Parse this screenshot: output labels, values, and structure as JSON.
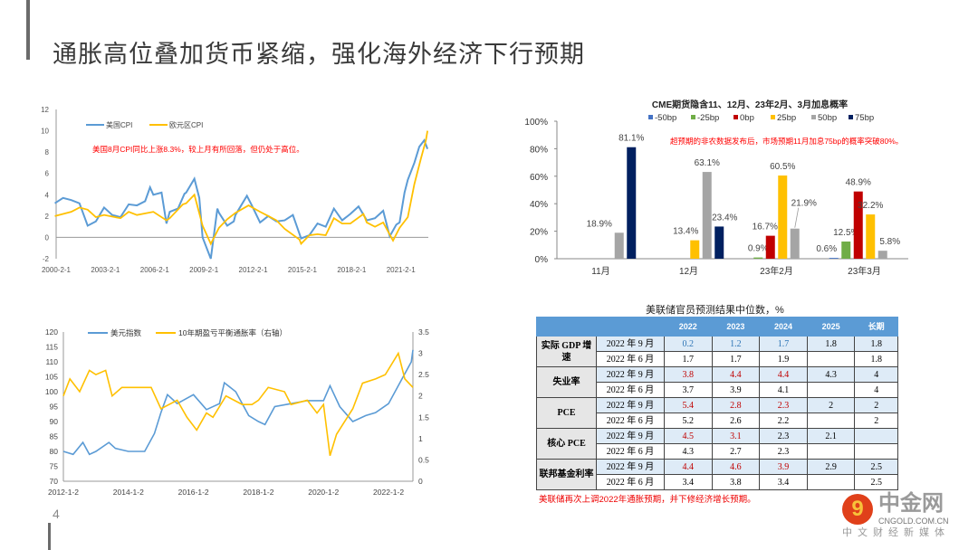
{
  "page": {
    "title": "通胀高位叠加货币紧缩，强化海外经济下行预期",
    "page_number": "4"
  },
  "chart_data": [
    {
      "type": "line",
      "title": "",
      "series": [
        {
          "name": "美国CPI",
          "color": "#5b9bd5",
          "x": [
            2000,
            2000.5,
            2001,
            2001.5,
            2002,
            2002.5,
            2003,
            2003.5,
            2004,
            2004.5,
            2005,
            2005.5,
            2005.8,
            2006,
            2006.5,
            2006.8,
            2007,
            2007.5,
            2007.9,
            2008,
            2008.5,
            2008.8,
            2009,
            2009.5,
            2009.9,
            2010,
            2010.5,
            2010.9,
            2011,
            2011.7,
            2012,
            2012.5,
            2013,
            2013.5,
            2014,
            2014.5,
            2015,
            2015.5,
            2016,
            2016.5,
            2017,
            2017.5,
            2018,
            2018.5,
            2019,
            2019.5,
            2020,
            2020.4,
            2020.8,
            2021,
            2021.3,
            2021.5,
            2021.9,
            2022.2,
            2022.5,
            2022.7
          ],
          "values": [
            3.2,
            3.7,
            3.5,
            3.2,
            1.1,
            1.5,
            2.8,
            2.1,
            1.9,
            3.1,
            3.0,
            3.4,
            4.7,
            4.0,
            4.2,
            1.3,
            2.4,
            2.7,
            4.1,
            4.2,
            5.5,
            3.7,
            0.0,
            -2.0,
            2.7,
            2.3,
            1.1,
            1.5,
            2.1,
            3.9,
            3.0,
            1.4,
            2.0,
            1.5,
            1.6,
            2.1,
            -0.1,
            0.2,
            1.3,
            1.0,
            2.7,
            1.6,
            2.2,
            2.9,
            1.6,
            1.8,
            2.5,
            0.1,
            1.2,
            1.4,
            4.2,
            5.4,
            7.0,
            8.5,
            9.1,
            8.3
          ]
        },
        {
          "name": "欧元区CPI",
          "color": "#ffc000",
          "x": [
            2000,
            2001,
            2001.5,
            2002,
            2002.5,
            2003,
            2004,
            2004.5,
            2005,
            2006,
            2006.8,
            2007,
            2007.8,
            2008,
            2008.5,
            2009,
            2009.5,
            2010,
            2010.5,
            2011,
            2011.8,
            2012.5,
            2013,
            2013.5,
            2014,
            2014.9,
            2015,
            2015.5,
            2016,
            2016.5,
            2017,
            2017.5,
            2018,
            2018.8,
            2019,
            2019.5,
            2020,
            2020.6,
            2021,
            2021.5,
            2021.9,
            2022.3,
            2022.6,
            2022.7
          ],
          "values": [
            2.0,
            2.4,
            2.8,
            2.6,
            1.9,
            2.1,
            1.8,
            2.4,
            2.1,
            2.4,
            1.6,
            1.8,
            3.1,
            3.2,
            4.0,
            1.1,
            -0.6,
            0.9,
            1.7,
            2.3,
            3.0,
            2.4,
            2.0,
            1.6,
            0.8,
            -0.2,
            -0.6,
            0.2,
            0.3,
            0.2,
            1.8,
            1.3,
            1.3,
            2.2,
            1.4,
            1.0,
            1.4,
            -0.3,
            0.9,
            1.9,
            5.0,
            7.4,
            9.1,
            10.0
          ]
        }
      ],
      "ylim": [
        -2,
        12
      ],
      "yticks": [
        "-2",
        "0",
        "2",
        "4",
        "6",
        "8",
        "10",
        "12"
      ],
      "xticks": [
        "2000-2-1",
        "2003-2-1",
        "2006-2-1",
        "2009-2-1",
        "2012-2-1",
        "2015-2-1",
        "2018-2-1",
        "2021-2-1"
      ],
      "annotation": "美国8月CPI同比上涨8.3%，较上月有所回落，但仍处于高位。",
      "legend": "top-left"
    },
    {
      "type": "bar",
      "title": "CME期货隐含11、12月、23年2月、3月加息概率",
      "categories": [
        "11月",
        "12月",
        "23年2月",
        "23年3月"
      ],
      "series": [
        {
          "name": "-50bp",
          "color": "#4472c4",
          "values": [
            0,
            0,
            0,
            0.6
          ]
        },
        {
          "name": "-25bp",
          "color": "#70ad47",
          "values": [
            0,
            0,
            0.9,
            12.5
          ]
        },
        {
          "name": "0bp",
          "color": "#c00000",
          "values": [
            0,
            0,
            16.7,
            48.9
          ]
        },
        {
          "name": "25bp",
          "color": "#ffc000",
          "values": [
            0,
            13.4,
            60.5,
            32.2
          ]
        },
        {
          "name": "50bp",
          "color": "#a5a5a5",
          "values": [
            18.9,
            63.1,
            21.9,
            5.8
          ]
        },
        {
          "name": "75bp",
          "color": "#002060",
          "values": [
            81.1,
            23.4,
            0,
            0
          ]
        }
      ],
      "labels": [
        [
          "",
          "",
          "",
          "",
          "18.9%",
          "81.1%"
        ],
        [
          "",
          "",
          "",
          "13.4%",
          "63.1%",
          "23.4%"
        ],
        [
          "",
          "0.9%",
          "16.7%",
          "60.5%",
          "21.9%",
          ""
        ],
        [
          "0.6%",
          "12.5%",
          "48.9%",
          "32.2%",
          "5.8%",
          ""
        ]
      ],
      "ylim": [
        0,
        100
      ],
      "yticks": [
        "0%",
        "20%",
        "40%",
        "60%",
        "80%",
        "100%"
      ],
      "annotation": "超预期的非农数据发布后，市场预期11月加息75bp的概率突破80%。",
      "legend": "top"
    },
    {
      "type": "line",
      "title": "",
      "series": [
        {
          "name": "美元指数",
          "color": "#5b9bd5",
          "axis": "left",
          "x": [
            2012,
            2012.3,
            2012.6,
            2012.8,
            2013,
            2013.4,
            2013.6,
            2014,
            2014.5,
            2014.8,
            2015,
            2015.2,
            2015.5,
            2016,
            2016.4,
            2016.8,
            2016.95,
            2017.3,
            2017.7,
            2018,
            2018.2,
            2018.5,
            2019,
            2019.5,
            2020,
            2020.2,
            2020.5,
            2020.9,
            2021.3,
            2021.6,
            2022,
            2022.4,
            2022.7,
            2022.75
          ],
          "values": [
            80,
            79,
            83,
            79,
            80,
            83,
            81,
            80,
            80,
            86,
            93,
            99,
            96,
            99,
            94,
            96,
            103,
            100,
            92,
            90,
            89,
            95,
            96,
            97,
            97,
            102,
            95,
            90,
            92,
            93,
            96,
            104,
            110,
            114
          ]
        },
        {
          "name": "10年期盈亏平衡通胀率（右轴）",
          "color": "#ffc000",
          "axis": "right",
          "x": [
            2012,
            2012.2,
            2012.5,
            2012.8,
            2013,
            2013.3,
            2013.5,
            2013.8,
            2014,
            2014.7,
            2015,
            2015.5,
            2015.8,
            2016.1,
            2016.4,
            2016.6,
            2017,
            2017.5,
            2017.8,
            2018,
            2018.3,
            2018.8,
            2019,
            2019.5,
            2019.8,
            2020,
            2020.2,
            2020.4,
            2020.9,
            2021.2,
            2021.6,
            2021.9,
            2022.3,
            2022.5,
            2022.75
          ],
          "values": [
            2.0,
            2.4,
            2.1,
            2.6,
            2.5,
            2.6,
            2.0,
            2.2,
            2.2,
            2.2,
            1.7,
            1.9,
            1.5,
            1.2,
            1.6,
            1.5,
            2.0,
            1.8,
            1.8,
            1.9,
            2.2,
            2.1,
            1.8,
            1.9,
            1.6,
            1.8,
            0.6,
            1.1,
            1.7,
            2.3,
            2.4,
            2.5,
            3.0,
            2.4,
            2.2
          ]
        }
      ],
      "ylim": [
        70,
        120
      ],
      "ylim_right": [
        0,
        3.5
      ],
      "yticks": [
        "70",
        "75",
        "80",
        "85",
        "90",
        "95",
        "100",
        "105",
        "110",
        "115",
        "120"
      ],
      "yticks_right": [
        "0",
        "0.5",
        "1",
        "1.5",
        "2",
        "2.5",
        "3",
        "3.5"
      ],
      "xticks": [
        "2012-1-2",
        "2014-1-2",
        "2016-1-2",
        "2018-1-2",
        "2020-1-2",
        "2022-1-2"
      ],
      "legend": "top"
    },
    {
      "type": "table",
      "title": "美联储官员预测结果中位数，%",
      "headers": [
        "",
        "",
        "2022",
        "2023",
        "2024",
        "2025",
        "长期"
      ],
      "groups": [
        {
          "name": "实际 GDP 增速",
          "rows": [
            [
              "2022 年 9 月",
              "0.2",
              "1.2",
              "1.7",
              "1.8",
              "1.8"
            ],
            [
              "2022 年 6 月",
              "1.7",
              "1.7",
              "1.9",
              "",
              "1.8"
            ]
          ]
        },
        {
          "name": "失业率",
          "rows": [
            [
              "2022 年 9 月",
              "3.8",
              "4.4",
              "4.4",
              "4.3",
              "4"
            ],
            [
              "2022 年 6 月",
              "3.7",
              "3.9",
              "4.1",
              "",
              "4"
            ]
          ]
        },
        {
          "name": "PCE",
          "rows": [
            [
              "2022 年 9 月",
              "5.4",
              "2.8",
              "2.3",
              "2",
              "2"
            ],
            [
              "2022 年 6 月",
              "5.2",
              "2.6",
              "2.2",
              "",
              "2"
            ]
          ]
        },
        {
          "name": "核心 PCE",
          "rows": [
            [
              "2022 年 9 月",
              "4.5",
              "3.1",
              "2.3",
              "2.1",
              ""
            ],
            [
              "2022 年 6 月",
              "4.3",
              "2.7",
              "2.3",
              "",
              ""
            ]
          ]
        },
        {
          "name": "联邦基金利率",
          "rows": [
            [
              "2022 年 9 月",
              "4.4",
              "4.6",
              "3.9",
              "2.9",
              "2.5"
            ],
            [
              "2022 年 6 月",
              "3.4",
              "3.8",
              "3.4",
              "",
              "2.5"
            ]
          ]
        }
      ],
      "note": "美联储再次上调2022年通胀预期，并下修经济增长预期。"
    }
  ],
  "watermark": {
    "name": "中金网",
    "url": "CNGOLD.COM.CN",
    "tagline": "中文财经新媒体"
  }
}
